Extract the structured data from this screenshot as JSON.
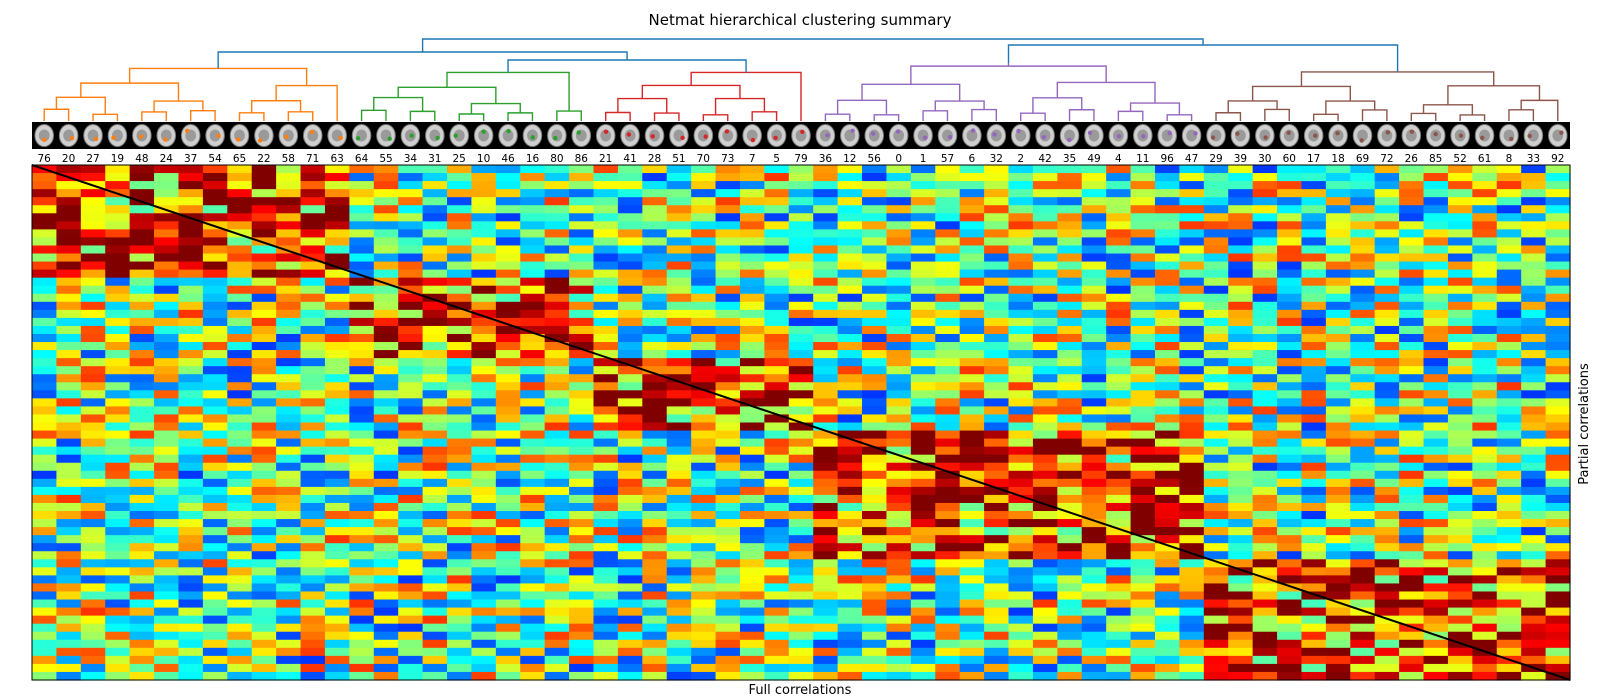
{
  "chart_data": {
    "type": "heatmap",
    "title": "Netmat hierarchical clustering summary",
    "xlabel": "Full correlations",
    "ylabel": "Partial correlations",
    "node_order": [
      "76",
      "20",
      "27",
      "19",
      "48",
      "24",
      "37",
      "54",
      "65",
      "22",
      "58",
      "71",
      "63",
      "64",
      "55",
      "34",
      "31",
      "25",
      "10",
      "46",
      "16",
      "80",
      "86",
      "21",
      "41",
      "28",
      "51",
      "70",
      "73",
      "7",
      "5",
      "79",
      "36",
      "12",
      "56",
      "0",
      "1",
      "57",
      "6",
      "32",
      "2",
      "42",
      "35",
      "49",
      "4",
      "11",
      "96",
      "47",
      "29",
      "39",
      "30",
      "60",
      "17",
      "18",
      "69",
      "72",
      "26",
      "85",
      "52",
      "61",
      "8",
      "33",
      "92"
    ],
    "value_range": [
      -1,
      1
    ],
    "colormap": "jet",
    "diagonal": "black line separating lower triangle (full correlations) from upper triangle (partial correlations)",
    "clusters": [
      {
        "color": "#ff7f0e",
        "nodes": [
          "76",
          "20",
          "27",
          "19",
          "48",
          "24",
          "37",
          "54",
          "65",
          "22",
          "58",
          "71",
          "63"
        ]
      },
      {
        "color": "#2ca02c",
        "nodes": [
          "64",
          "55",
          "34",
          "31",
          "25",
          "10",
          "46",
          "16",
          "80",
          "86"
        ]
      },
      {
        "color": "#d62728",
        "nodes": [
          "21",
          "41",
          "28",
          "51",
          "70",
          "73",
          "7",
          "5",
          "79"
        ]
      },
      {
        "color": "#9467bd",
        "nodes": [
          "36",
          "12",
          "56",
          "0",
          "1",
          "57",
          "6",
          "32",
          "2",
          "42",
          "35",
          "49",
          "4",
          "11",
          "96",
          "47"
        ]
      },
      {
        "color": "#8c564b",
        "nodes": [
          "29",
          "39",
          "30",
          "60",
          "17",
          "18",
          "69",
          "72",
          "26",
          "85",
          "52",
          "61",
          "8",
          "33",
          "92"
        ]
      }
    ],
    "linkage_color": "#1f77b4"
  }
}
